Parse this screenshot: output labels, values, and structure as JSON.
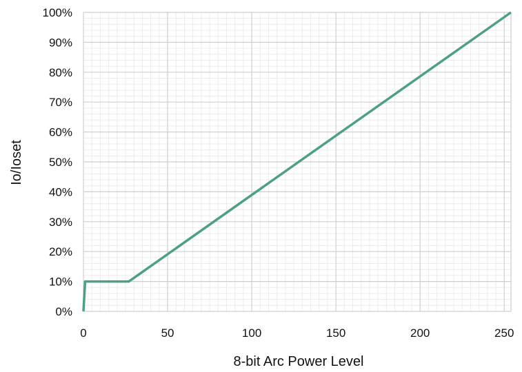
{
  "chart_data": {
    "type": "line",
    "title": "",
    "xlabel": "8-bit Arc Power Level",
    "ylabel": "Io/Ioset",
    "xlim": [
      0,
      254
    ],
    "ylim": [
      0,
      100
    ],
    "x_ticks": [
      0,
      50,
      100,
      150,
      200,
      250
    ],
    "x_tick_labels": [
      "0",
      "50",
      "100",
      "150",
      "200",
      "250"
    ],
    "y_ticks": [
      0,
      10,
      20,
      30,
      40,
      50,
      60,
      70,
      80,
      90,
      100
    ],
    "y_tick_labels": [
      "0%",
      "10%",
      "20%",
      "30%",
      "40%",
      "50%",
      "60%",
      "70%",
      "80%",
      "90%",
      "100%"
    ],
    "grid": true,
    "legend": "none",
    "series": [
      {
        "color": "#4e9f85",
        "points": [
          {
            "x": 0,
            "y": 0
          },
          {
            "x": 1,
            "y": 10
          },
          {
            "x": 27,
            "y": 10
          },
          {
            "x": 254,
            "y": 100
          }
        ]
      }
    ]
  }
}
